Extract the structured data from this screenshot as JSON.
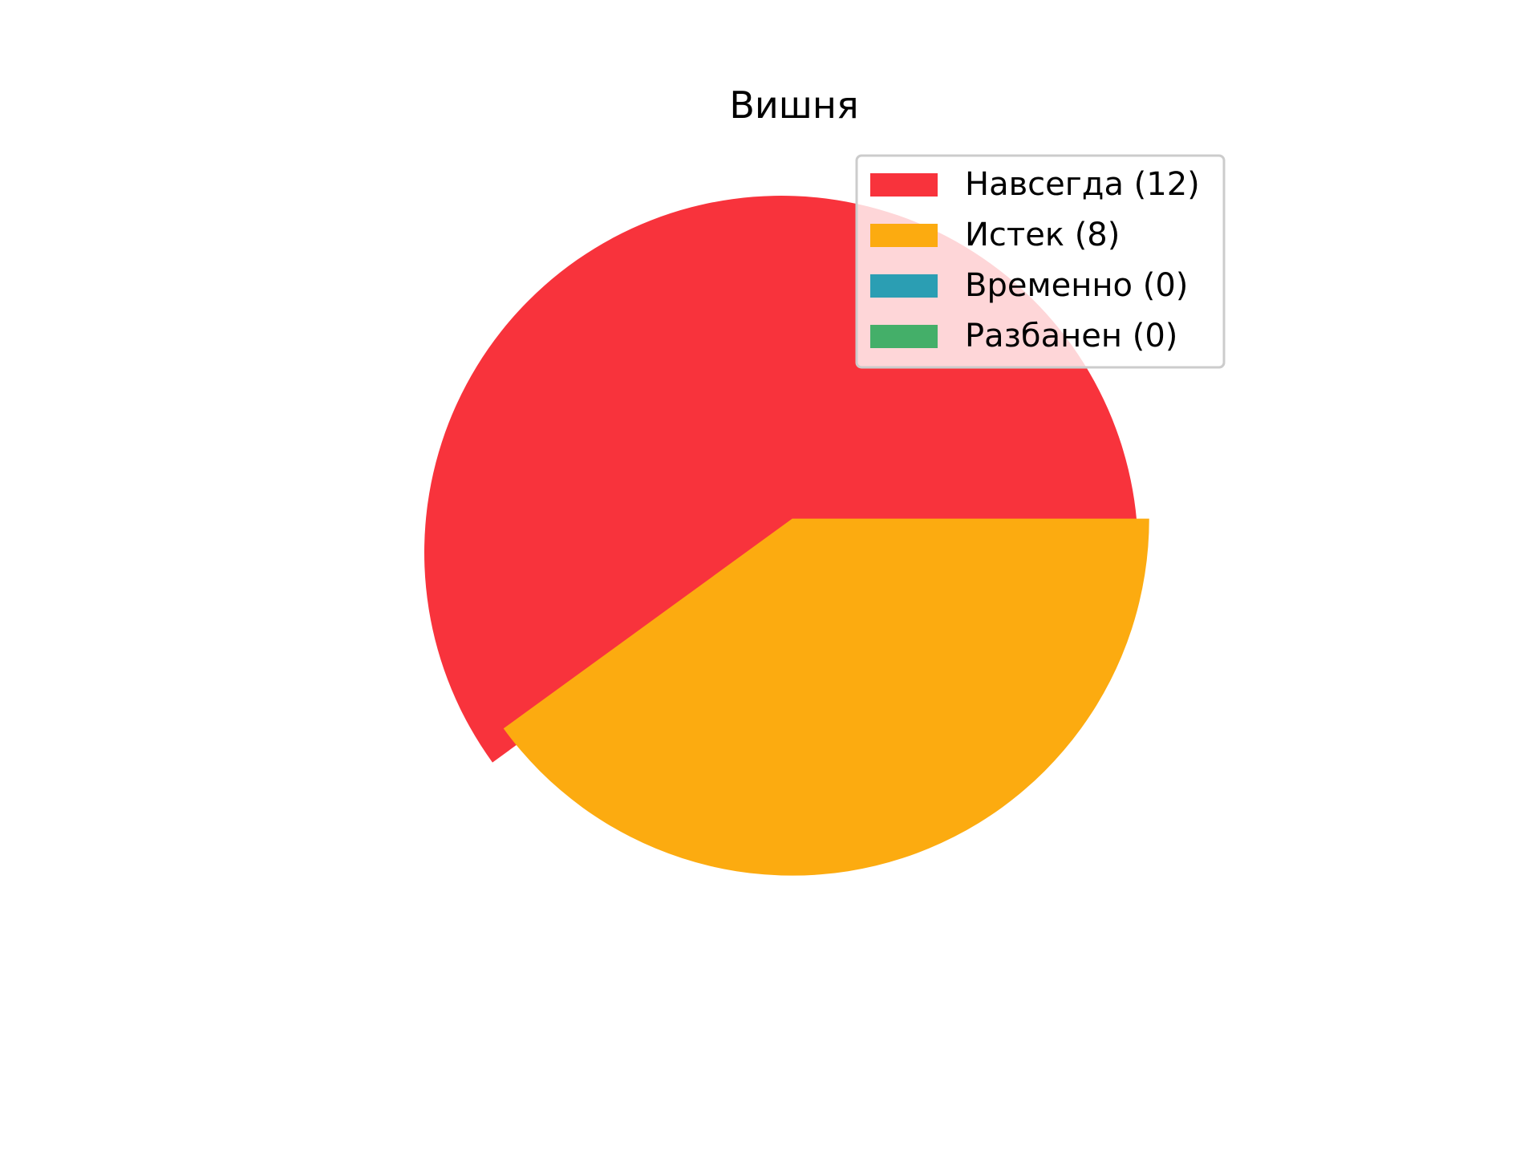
{
  "chart_data": {
    "type": "pie",
    "title": "Вишня",
    "slices": [
      {
        "label": "Навсегда",
        "value": 12,
        "legend_label": "Навсегда (12)",
        "color": "#f8333c",
        "exploded": false
      },
      {
        "label": "Истек",
        "value": 8,
        "legend_label": "Истек (8)",
        "color": "#fcab10",
        "exploded": true
      },
      {
        "label": "Временно",
        "value": 0,
        "legend_label": "Временно (0)",
        "color": "#2b9eb3",
        "exploded": false
      },
      {
        "label": "Разбанен",
        "value": 0,
        "legend_label": "Разбанен (0)",
        "color": "#44af69",
        "exploded": false
      }
    ],
    "legend": {
      "placement": "upper-right"
    }
  }
}
